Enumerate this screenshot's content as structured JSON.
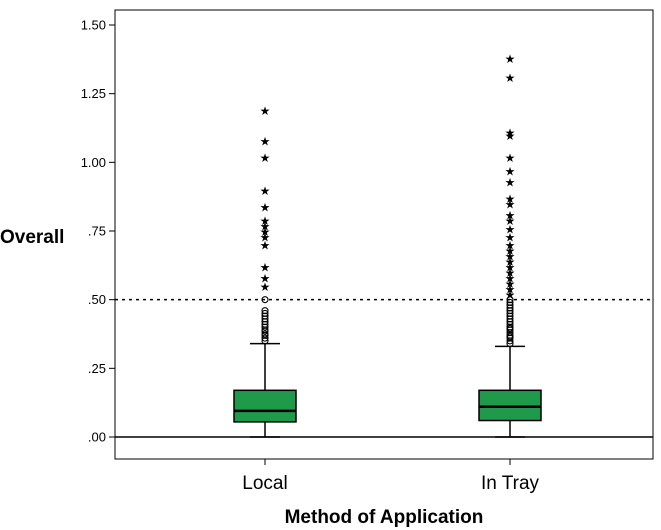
{
  "chart_data": {
    "type": "boxplot",
    "xlabel": "Method of Application",
    "ylabel": "Overall",
    "ylim": [
      -0.04,
      1.54
    ],
    "y_ticks": [
      0.0,
      0.25,
      0.5,
      0.75,
      1.0,
      1.25,
      1.5
    ],
    "y_tick_labels": [
      ".00",
      ".25",
      ".50",
      ".75",
      "1.00",
      "1.25",
      "1.50"
    ],
    "reference_lines": [
      {
        "y": 0.0,
        "style": "solid"
      },
      {
        "y": 0.5,
        "style": "dotted"
      }
    ],
    "box_color": "#1f9a4a",
    "categories": [
      "Local",
      "In Tray"
    ],
    "boxes": [
      {
        "category": "Local",
        "whisker_low": 0.0,
        "q1": 0.055,
        "median": 0.095,
        "q3": 0.17,
        "whisker_high": 0.34,
        "outliers_circle": [
          0.35,
          0.36,
          0.37,
          0.375,
          0.385,
          0.39,
          0.4,
          0.41,
          0.42,
          0.43,
          0.44,
          0.45,
          0.46,
          0.5
        ],
        "outliers_star": [
          0.55,
          0.58,
          0.62,
          0.7,
          0.73,
          0.75,
          0.77,
          0.79,
          0.84,
          0.9,
          1.02,
          1.08,
          1.19
        ]
      },
      {
        "category": "In Tray",
        "whisker_low": 0.0,
        "q1": 0.06,
        "median": 0.11,
        "q3": 0.17,
        "whisker_high": 0.33,
        "outliers_circle": [
          0.34,
          0.35,
          0.36,
          0.365,
          0.37,
          0.38,
          0.39,
          0.395,
          0.4,
          0.41,
          0.42,
          0.43,
          0.44,
          0.45,
          0.46,
          0.47,
          0.48,
          0.49,
          0.5
        ],
        "outliers_star": [
          0.52,
          0.54,
          0.56,
          0.58,
          0.6,
          0.62,
          0.64,
          0.66,
          0.68,
          0.7,
          0.73,
          0.76,
          0.79,
          0.81,
          0.85,
          0.87,
          0.93,
          0.97,
          1.02,
          1.1,
          1.11,
          1.31,
          1.38
        ]
      }
    ]
  }
}
